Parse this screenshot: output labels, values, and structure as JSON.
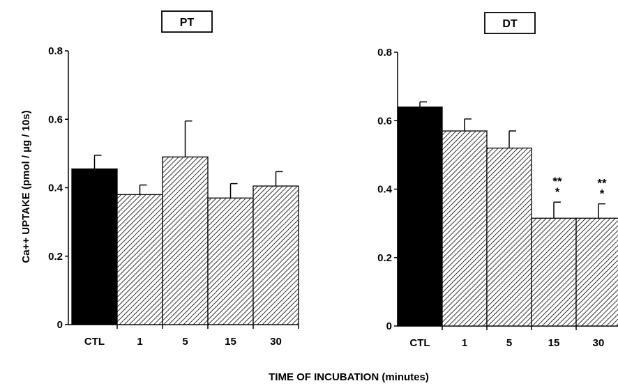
{
  "chart_data": [
    {
      "type": "bar",
      "title": "PT",
      "categories": [
        "CTL",
        "1",
        "5",
        "15",
        "30"
      ],
      "values": [
        0.455,
        0.38,
        0.49,
        0.37,
        0.405
      ],
      "errors": [
        0.04,
        0.028,
        0.105,
        0.042,
        0.042
      ],
      "fills": [
        "solid",
        "hatched",
        "hatched",
        "hatched",
        "hatched"
      ],
      "significance": [
        "",
        "",
        "",
        "",
        ""
      ],
      "ylabel": "Ca++ UPTAKE (pmol / µg / 10s)",
      "ylim": [
        0,
        0.8
      ],
      "yticks": [
        "0",
        "0.2",
        "0.4",
        "0.6",
        "0.8"
      ],
      "grid": false
    },
    {
      "type": "bar",
      "title": "DT",
      "categories": [
        "CTL",
        "1",
        "5",
        "15",
        "30"
      ],
      "values": [
        0.64,
        0.57,
        0.52,
        0.315,
        0.315
      ],
      "errors": [
        0.015,
        0.035,
        0.05,
        0.047,
        0.042
      ],
      "fills": [
        "solid",
        "hatched",
        "hatched",
        "hatched",
        "hatched"
      ],
      "significance": [
        "",
        "",
        "",
        "**\n*",
        "**\n*"
      ],
      "ylabel": "",
      "ylim": [
        0,
        0.8
      ],
      "yticks": [
        "0",
        "0.2",
        "0.4",
        "0.6",
        "0.8"
      ],
      "grid": false
    }
  ],
  "xlabel": "TIME OF INCUBATION (minutes)",
  "colors": {
    "solid_bar": "#000000",
    "hatch": "#000000",
    "background": "#ffffff"
  }
}
